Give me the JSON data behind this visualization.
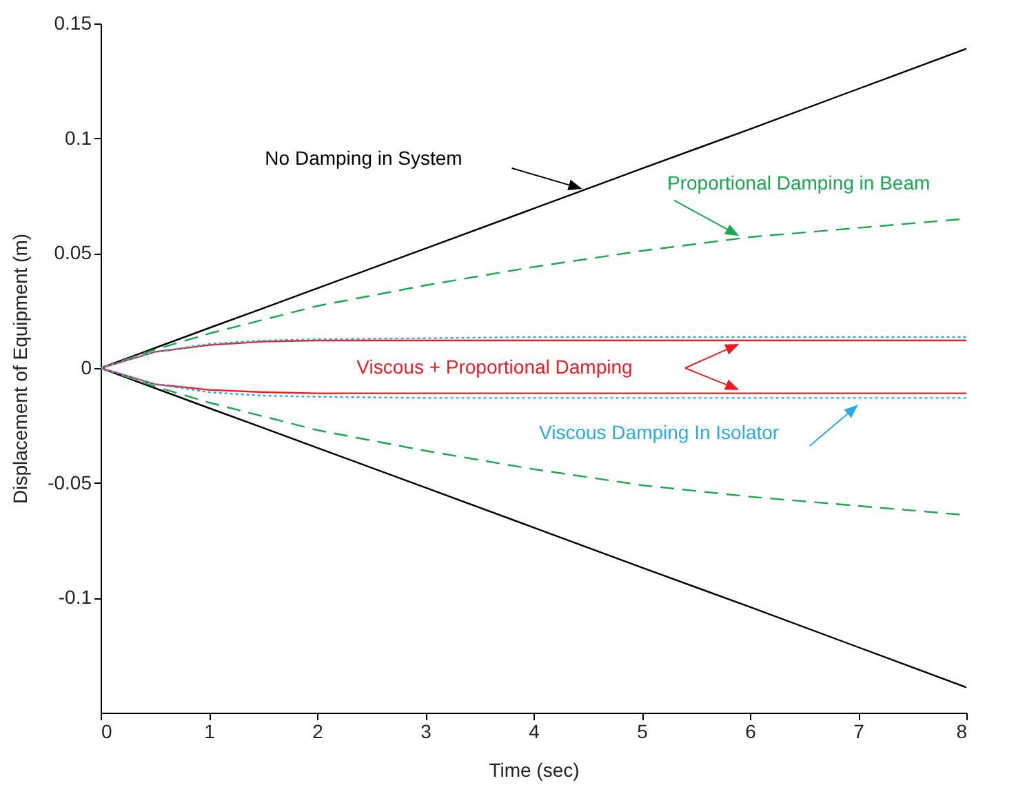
{
  "chart_data": {
    "type": "line",
    "xlabel": "Time (sec)",
    "ylabel": "Displacement of Equipment (m)",
    "x": [
      0,
      0.5,
      1,
      1.5,
      2,
      3,
      4,
      5,
      6,
      7,
      8
    ],
    "xlim": [
      0,
      8
    ],
    "xticks": [
      0,
      1,
      2,
      3,
      4,
      5,
      6,
      7,
      8
    ],
    "ylim": [
      -0.15,
      0.15
    ],
    "yticks": [
      -0.1,
      -0.05,
      0,
      0.05,
      0.1,
      0.15
    ],
    "grid": false,
    "marker": "none",
    "series": [
      {
        "name": "No Damping in System",
        "color": "#000000",
        "line_style": "solid",
        "values": [
          0,
          0.0087,
          0.0174,
          0.026,
          0.0347,
          0.052,
          0.0694,
          0.0868,
          0.104,
          0.1215,
          0.139
        ]
      },
      {
        "color": "#000000",
        "line_style": "solid",
        "values": [
          0,
          -0.0087,
          -0.0174,
          -0.026,
          -0.0347,
          -0.052,
          -0.0694,
          -0.0868,
          -0.104,
          -0.1215,
          -0.139
        ]
      },
      {
        "name": "Proportional Damping in Beam",
        "color": "#1aa84f",
        "line_style": "dashed",
        "values": [
          0,
          0.008,
          0.015,
          0.021,
          0.027,
          0.036,
          0.044,
          0.051,
          0.057,
          0.061,
          0.065
        ]
      },
      {
        "color": "#1aa84f",
        "line_style": "dashed",
        "values": [
          0,
          -0.008,
          -0.015,
          -0.021,
          -0.027,
          -0.036,
          -0.044,
          -0.051,
          -0.056,
          -0.06,
          -0.064
        ]
      },
      {
        "name": "Viscous + Proportional Damping",
        "color": "#ed1c24",
        "line_style": "solid",
        "values": [
          0,
          0.007,
          0.01,
          0.0115,
          0.012,
          0.012,
          0.012,
          0.012,
          0.012,
          0.012,
          0.012
        ]
      },
      {
        "color": "#ed1c24",
        "line_style": "solid",
        "values": [
          0,
          -0.007,
          -0.0095,
          -0.0105,
          -0.011,
          -0.011,
          -0.011,
          -0.011,
          -0.011,
          -0.011,
          -0.011
        ]
      },
      {
        "color": "#29abe2",
        "line_style": "dotted",
        "values": [
          0,
          0.007,
          0.0105,
          0.012,
          0.0125,
          0.013,
          0.0135,
          0.0135,
          0.0135,
          0.0135,
          0.0135
        ]
      },
      {
        "name": "Viscous Damping In Isolator",
        "color": "#29abe2",
        "line_style": "dotted",
        "values": [
          0,
          -0.007,
          -0.0105,
          -0.012,
          -0.0125,
          -0.013,
          -0.013,
          -0.013,
          -0.013,
          -0.013,
          -0.013
        ]
      }
    ]
  }
}
